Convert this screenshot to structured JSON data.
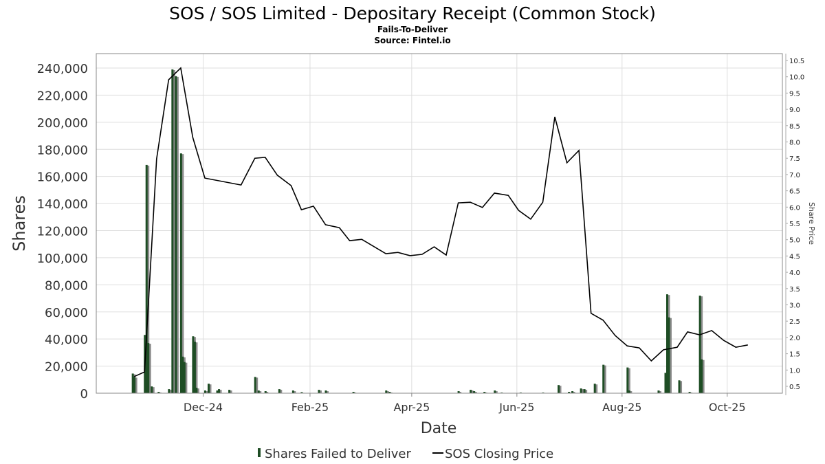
{
  "chart_data": {
    "type": "bar+line",
    "title": "SOS / SOS Limited - Depositary Receipt (Common Stock)",
    "subtitle": "Fails-To-Deliver",
    "source": "Source: Fintel.io",
    "xlabel": "Date",
    "ylabel": "Shares",
    "y2label": "Share Price",
    "x_ticks": [
      {
        "label": "Dec-24",
        "date": "2024-12-01"
      },
      {
        "label": "Feb-25",
        "date": "2025-02-01"
      },
      {
        "label": "Apr-25",
        "date": "2025-04-01"
      },
      {
        "label": "Jun-25",
        "date": "2025-06-01"
      },
      {
        "label": "Aug-25",
        "date": "2025-08-01"
      },
      {
        "label": "Oct-25",
        "date": "2025-10-01"
      }
    ],
    "xlim": [
      "2024-09-30",
      "2025-11-02"
    ],
    "y_ticks": [
      "0",
      "20,000",
      "40,000",
      "60,000",
      "80,000",
      "100,000",
      "120,000",
      "140,000",
      "160,000",
      "180,000",
      "200,000",
      "220,000",
      "240,000"
    ],
    "ylim": [
      0,
      240000
    ],
    "y2_ticks": [
      "0.5",
      "1.0",
      "1.5",
      "2.0",
      "2.5",
      "3.0",
      "3.5",
      "4.0",
      "4.5",
      "5.0",
      "5.5",
      "6.0",
      "6.5",
      "7.0",
      "7.5",
      "8.0",
      "8.5",
      "9.0",
      "9.5",
      "10.0",
      "10.5"
    ],
    "y2lim": [
      0.5,
      10.5
    ],
    "grid": true,
    "legend_position": "bottom",
    "colors": {
      "bars": "#1e4d24",
      "bar_shadow": "#8c8c8c",
      "line": "#000000"
    },
    "series": [
      {
        "name": "Shares Failed to Deliver",
        "type": "bar",
        "points": [
          [
            "2024-10-21",
            14500
          ],
          [
            "2024-10-22",
            12000
          ],
          [
            "2024-10-28",
            43000
          ],
          [
            "2024-10-29",
            168500
          ],
          [
            "2024-10-30",
            37000
          ],
          [
            "2024-11-01",
            5000
          ],
          [
            "2024-11-05",
            1000
          ],
          [
            "2024-11-11",
            3000
          ],
          [
            "2024-11-13",
            239000
          ],
          [
            "2024-11-15",
            234000
          ],
          [
            "2024-11-18",
            177000
          ],
          [
            "2024-11-19",
            27000
          ],
          [
            "2024-11-20",
            23000
          ],
          [
            "2024-11-25",
            42000
          ],
          [
            "2024-11-26",
            38000
          ],
          [
            "2024-11-27",
            4000
          ],
          [
            "2024-12-02",
            2000
          ],
          [
            "2024-12-04",
            7000
          ],
          [
            "2024-12-09",
            2000
          ],
          [
            "2024-12-10",
            3000
          ],
          [
            "2024-12-16",
            2500
          ],
          [
            "2024-12-31",
            12000
          ],
          [
            "2025-01-02",
            2000
          ],
          [
            "2025-01-06",
            1500
          ],
          [
            "2025-01-14",
            3000
          ],
          [
            "2025-01-22",
            2000
          ],
          [
            "2025-01-27",
            800
          ],
          [
            "2025-02-06",
            2500
          ],
          [
            "2025-02-10",
            2000
          ],
          [
            "2025-02-26",
            1000
          ],
          [
            "2025-03-17",
            2000
          ],
          [
            "2025-03-19",
            1000
          ],
          [
            "2025-04-28",
            1500
          ],
          [
            "2025-05-05",
            2500
          ],
          [
            "2025-05-07",
            1500
          ],
          [
            "2025-05-13",
            1000
          ],
          [
            "2025-05-19",
            2000
          ],
          [
            "2025-05-23",
            500
          ],
          [
            "2025-06-03",
            500
          ],
          [
            "2025-06-16",
            500
          ],
          [
            "2025-06-25",
            6000
          ],
          [
            "2025-07-01",
            1000
          ],
          [
            "2025-07-03",
            1500
          ],
          [
            "2025-07-08",
            3500
          ],
          [
            "2025-07-10",
            3000
          ],
          [
            "2025-07-16",
            7000
          ],
          [
            "2025-07-21",
            21000
          ],
          [
            "2025-08-04",
            19000
          ],
          [
            "2025-08-05",
            2000
          ],
          [
            "2025-08-22",
            2000
          ],
          [
            "2025-08-26",
            15000
          ],
          [
            "2025-08-27",
            73000
          ],
          [
            "2025-08-28",
            56000
          ],
          [
            "2025-09-03",
            9500
          ],
          [
            "2025-09-09",
            1000
          ],
          [
            "2025-09-15",
            72000
          ],
          [
            "2025-09-16",
            25000
          ]
        ]
      },
      {
        "name": "SOS Closing Price",
        "type": "line",
        "axis": "right",
        "points": [
          [
            "2024-10-22",
            0.8
          ],
          [
            "2024-10-28",
            0.94
          ],
          [
            "2024-11-04",
            7.48
          ],
          [
            "2024-11-11",
            9.91
          ],
          [
            "2024-11-18",
            10.27
          ],
          [
            "2024-11-25",
            8.14
          ],
          [
            "2024-12-02",
            6.89
          ],
          [
            "2024-12-23",
            6.68
          ],
          [
            "2024-12-31",
            7.5
          ],
          [
            "2025-01-06",
            7.53
          ],
          [
            "2025-01-13",
            6.98
          ],
          [
            "2025-01-21",
            6.66
          ],
          [
            "2025-01-27",
            5.92
          ],
          [
            "2025-02-03",
            6.03
          ],
          [
            "2025-02-10",
            5.46
          ],
          [
            "2025-02-18",
            5.37
          ],
          [
            "2025-02-24",
            4.97
          ],
          [
            "2025-03-03",
            5.01
          ],
          [
            "2025-03-17",
            4.57
          ],
          [
            "2025-03-24",
            4.61
          ],
          [
            "2025-03-31",
            4.51
          ],
          [
            "2025-04-07",
            4.55
          ],
          [
            "2025-04-14",
            4.78
          ],
          [
            "2025-04-21",
            4.53
          ],
          [
            "2025-04-28",
            6.13
          ],
          [
            "2025-05-05",
            6.15
          ],
          [
            "2025-05-12",
            5.99
          ],
          [
            "2025-05-19",
            6.43
          ],
          [
            "2025-05-27",
            6.36
          ],
          [
            "2025-06-02",
            5.9
          ],
          [
            "2025-06-09",
            5.63
          ],
          [
            "2025-06-16",
            6.15
          ],
          [
            "2025-06-23",
            8.77
          ],
          [
            "2025-06-30",
            7.36
          ],
          [
            "2025-07-07",
            7.74
          ],
          [
            "2025-07-14",
            2.74
          ],
          [
            "2025-07-21",
            2.53
          ],
          [
            "2025-07-28",
            2.06
          ],
          [
            "2025-08-04",
            1.74
          ],
          [
            "2025-08-11",
            1.68
          ],
          [
            "2025-08-18",
            1.28
          ],
          [
            "2025-08-25",
            1.62
          ],
          [
            "2025-09-02",
            1.7
          ],
          [
            "2025-09-08",
            2.17
          ],
          [
            "2025-09-15",
            2.08
          ],
          [
            "2025-09-22",
            2.21
          ],
          [
            "2025-09-29",
            1.91
          ],
          [
            "2025-10-06",
            1.7
          ],
          [
            "2025-10-13",
            1.77
          ]
        ]
      }
    ]
  }
}
